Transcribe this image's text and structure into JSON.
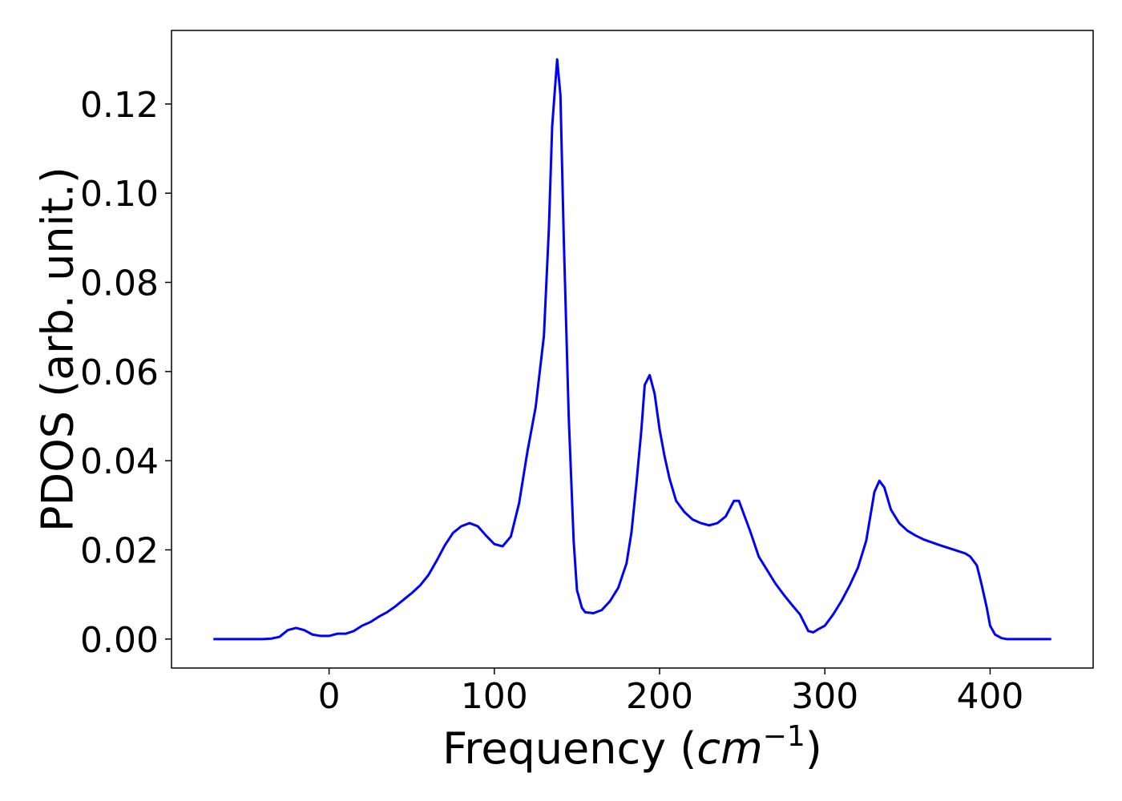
{
  "chart_data": {
    "type": "line",
    "xlabel": [
      "Frequency (",
      "cm",
      "−1",
      ")"
    ],
    "ylabel": "PDOS (arb. unit.)",
    "xlim": [
      -95.35,
      462.35
    ],
    "ylim": [
      -0.0065,
      0.1365
    ],
    "xticks": [
      0,
      100,
      200,
      300,
      400
    ],
    "yticks": [
      {
        "value": 0,
        "label": "0.00"
      },
      {
        "value": 0.02,
        "label": "0.02"
      },
      {
        "value": 0.04,
        "label": "0.04"
      },
      {
        "value": 0.06,
        "label": "0.06"
      },
      {
        "value": 0.08,
        "label": "0.08"
      },
      {
        "value": 0.1,
        "label": "0.10"
      },
      {
        "value": 0.12,
        "label": "0.12"
      }
    ],
    "color": "#0000ff",
    "x": [
      -70,
      -60,
      -50,
      -40,
      -35,
      -30,
      -25,
      -20,
      -15,
      -10,
      -5,
      0,
      5,
      10,
      15,
      20,
      25,
      30,
      35,
      40,
      45,
      50,
      55,
      60,
      65,
      70,
      75,
      80,
      85,
      90,
      95,
      100,
      105,
      110,
      115,
      120,
      125,
      130,
      133,
      135,
      138,
      140,
      142,
      145,
      148,
      150,
      153,
      155,
      160,
      165,
      170,
      175,
      180,
      183,
      186,
      189,
      191,
      194,
      197,
      200,
      203,
      206,
      210,
      215,
      220,
      225,
      230,
      235,
      240,
      245,
      248,
      250,
      255,
      260,
      265,
      270,
      275,
      280,
      285,
      290,
      293,
      296,
      300,
      305,
      310,
      315,
      320,
      325,
      330,
      333,
      336,
      340,
      345,
      350,
      355,
      360,
      370,
      380,
      385,
      388,
      392,
      395,
      398,
      400,
      403,
      407,
      410,
      420,
      437
    ],
    "values": [
      0,
      0,
      0,
      0,
      0.0001,
      0.0005,
      0.002,
      0.0025,
      0.002,
      0.001,
      0.0007,
      0.0007,
      0.0012,
      0.0012,
      0.0018,
      0.003,
      0.0038,
      0.005,
      0.006,
      0.0073,
      0.0088,
      0.0103,
      0.012,
      0.0143,
      0.0175,
      0.021,
      0.0238,
      0.0253,
      0.026,
      0.0253,
      0.0232,
      0.0213,
      0.0208,
      0.023,
      0.0305,
      0.042,
      0.052,
      0.068,
      0.092,
      0.115,
      0.13,
      0.122,
      0.09,
      0.05,
      0.022,
      0.011,
      0.007,
      0.006,
      0.0058,
      0.0065,
      0.0085,
      0.0115,
      0.017,
      0.024,
      0.035,
      0.047,
      0.057,
      0.0592,
      0.055,
      0.047,
      0.041,
      0.036,
      0.031,
      0.0285,
      0.0268,
      0.026,
      0.0255,
      0.026,
      0.0275,
      0.031,
      0.031,
      0.029,
      0.024,
      0.0185,
      0.0155,
      0.0125,
      0.01,
      0.0077,
      0.0055,
      0.0018,
      0.0015,
      0.0022,
      0.003,
      0.0055,
      0.0085,
      0.012,
      0.016,
      0.022,
      0.033,
      0.0355,
      0.034,
      0.029,
      0.026,
      0.0243,
      0.0232,
      0.0223,
      0.021,
      0.0198,
      0.0192,
      0.0185,
      0.0165,
      0.012,
      0.007,
      0.003,
      0.001,
      0.0002,
      0,
      0,
      0
    ]
  }
}
